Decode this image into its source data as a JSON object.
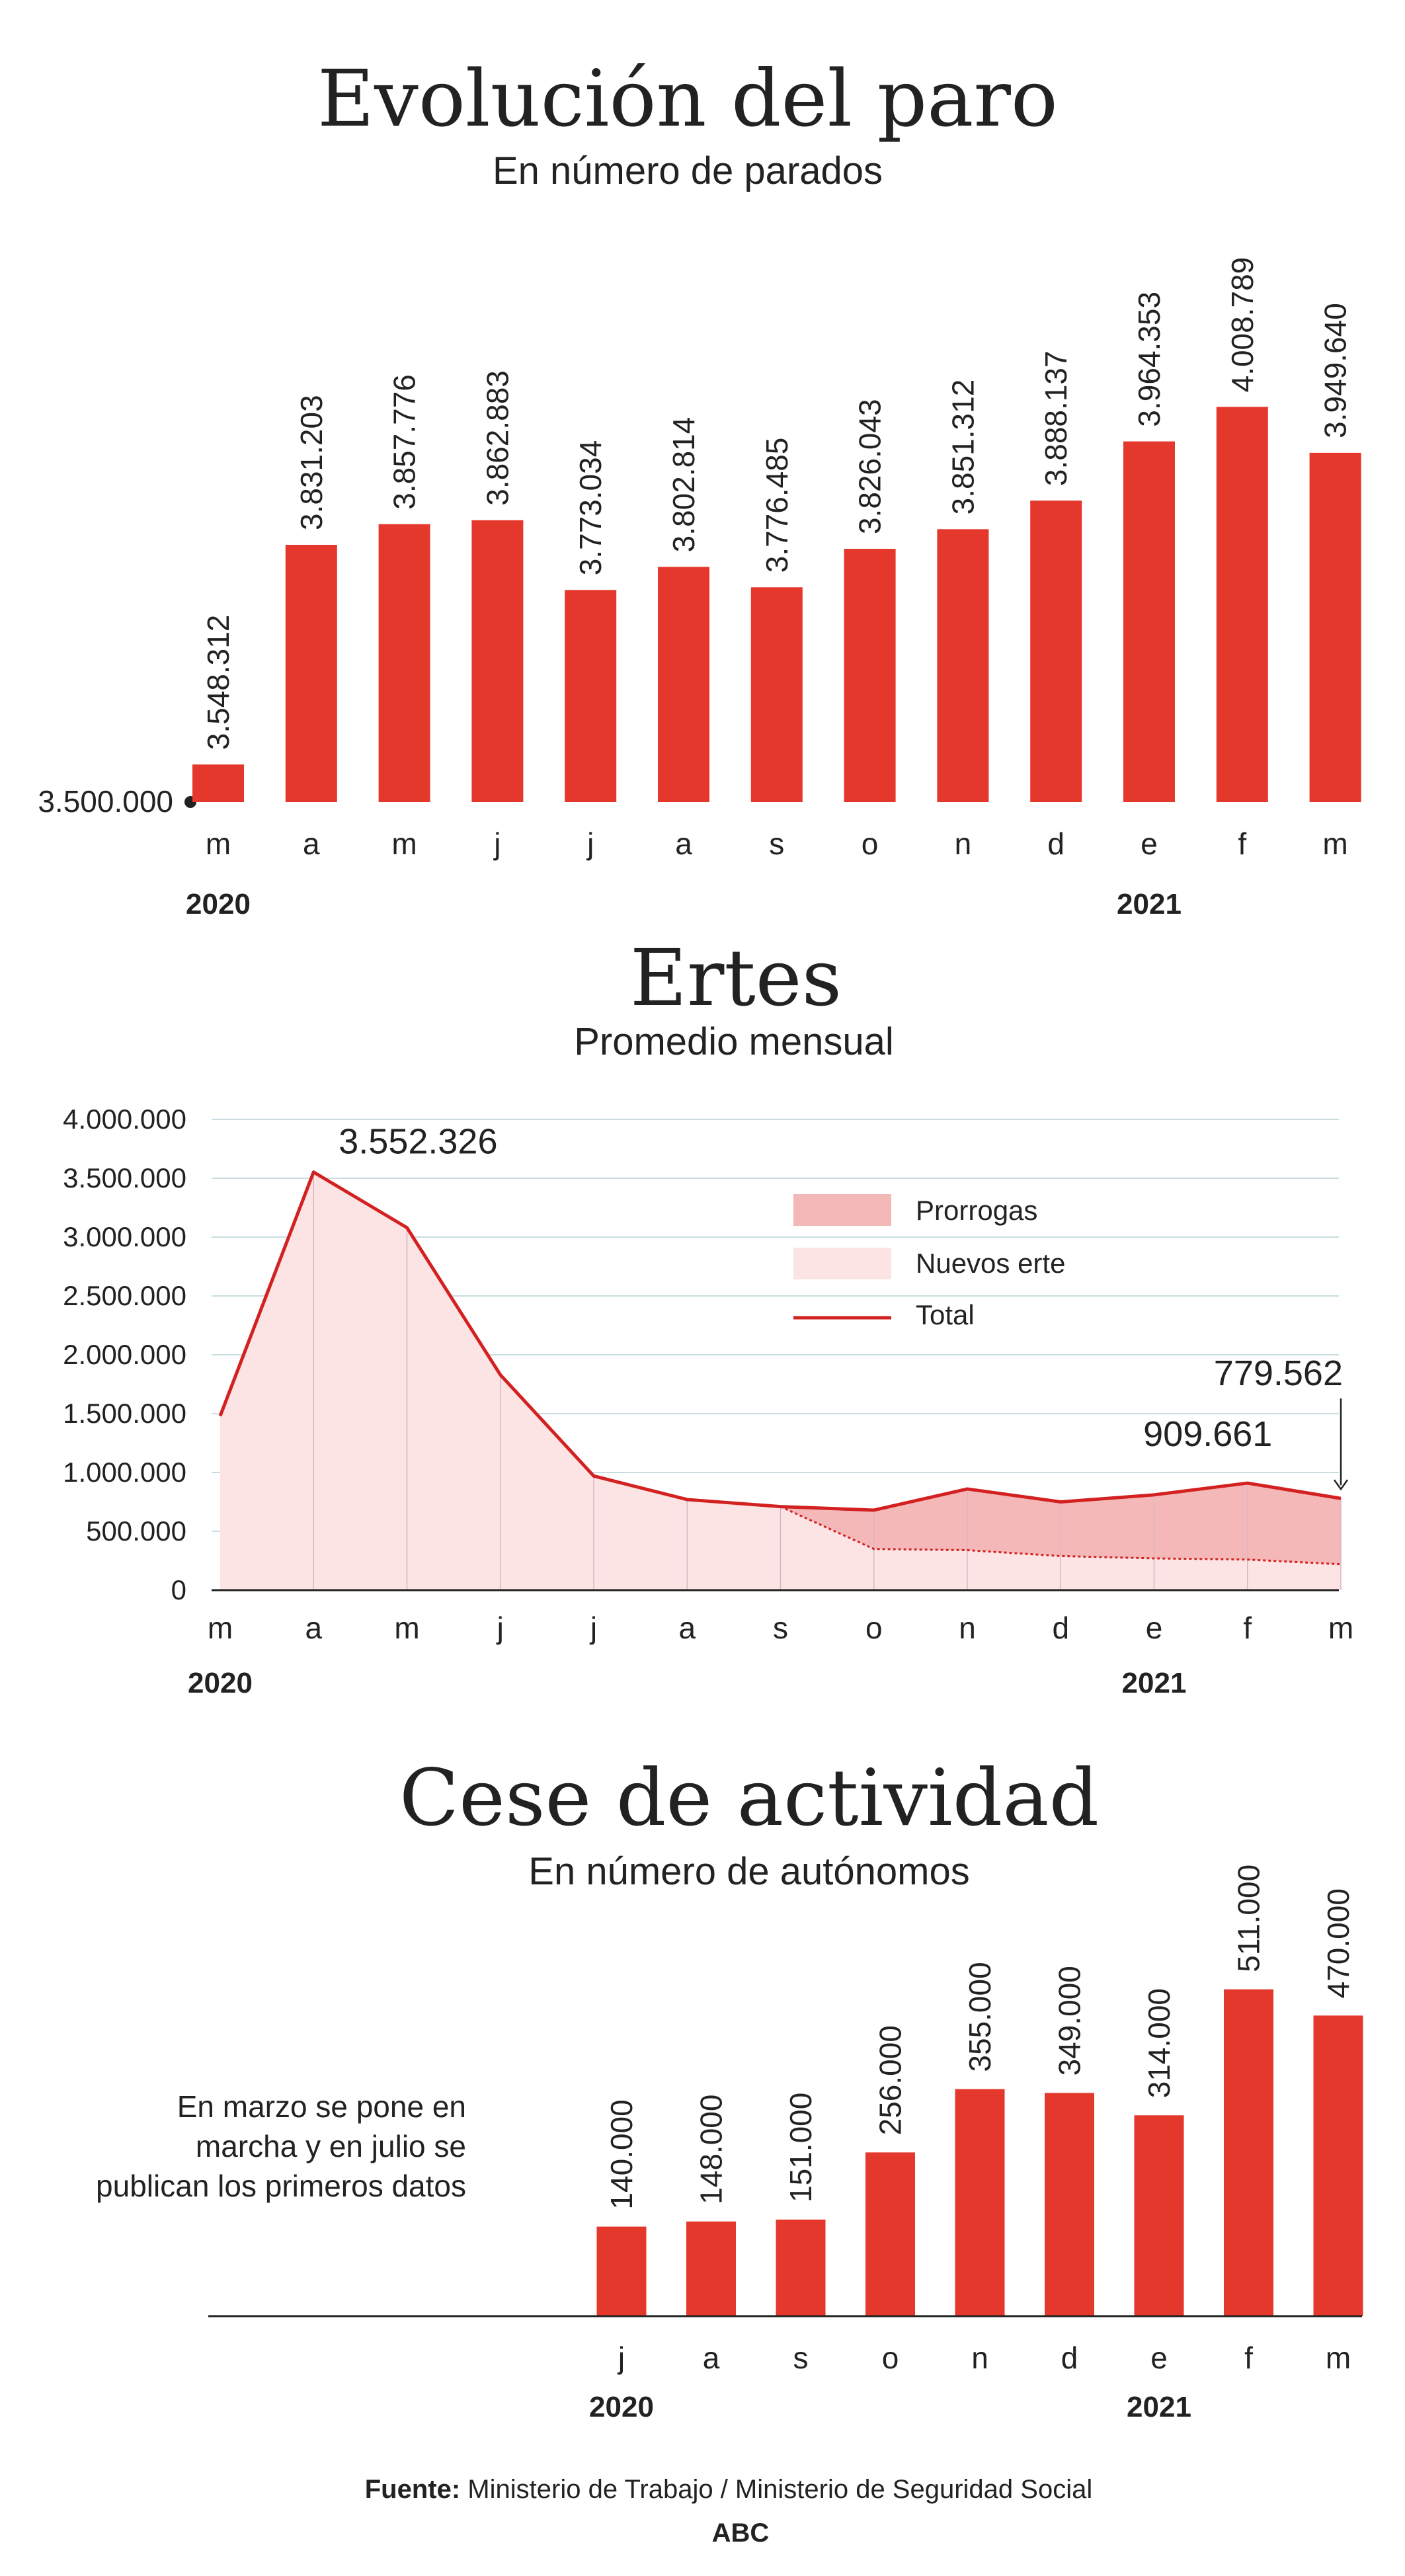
{
  "colors": {
    "bar": "#e5382c",
    "line": "#d32121",
    "prorrogas": "#f5b8b8",
    "nuevos": "#fde4e4",
    "grid": "#c9dde0",
    "text": "#222222"
  },
  "chart_data": [
    {
      "type": "bar",
      "title": "Evolución del paro",
      "subtitle": "En número de parados",
      "categories": [
        "m",
        "a",
        "m",
        "j",
        "j",
        "a",
        "s",
        "o",
        "n",
        "d",
        "e",
        "f",
        "m"
      ],
      "values": [
        3548312,
        3831203,
        3857776,
        3862883,
        3773034,
        3802814,
        3776485,
        3826043,
        3851312,
        3888137,
        3964353,
        4008789,
        3949640
      ],
      "value_labels": [
        "3.548.312",
        "3.831.203",
        "3.857.776",
        "3.862.883",
        "3.773.034",
        "3.802.814",
        "3.776.485",
        "3.826.043",
        "3.851.312",
        "3.888.137",
        "3.964.353",
        "4.008.789",
        "3.949.640"
      ],
      "baseline_value": 3500000,
      "baseline_label": "3.500.000",
      "ylim": [
        3500000,
        4090000
      ],
      "years": [
        {
          "label": "2020",
          "at": 0
        },
        {
          "label": "2021",
          "at": 10
        }
      ]
    },
    {
      "type": "area",
      "title": "Ertes",
      "subtitle": "Promedio mensual",
      "categories": [
        "m",
        "a",
        "m",
        "j",
        "j",
        "a",
        "s",
        "o",
        "n",
        "d",
        "e",
        "f",
        "m"
      ],
      "ylim": [
        0,
        4000000
      ],
      "yticks": [
        0,
        500000,
        1000000,
        1500000,
        2000000,
        2500000,
        3000000,
        3500000,
        4000000
      ],
      "ytick_labels": [
        "0",
        "500.000",
        "1.000.000",
        "1.500.000",
        "2.000.000",
        "2.500.000",
        "3.000.000",
        "3.500.000",
        "4.000.000"
      ],
      "grid": true,
      "series": [
        {
          "name": "Total",
          "values": [
            1480000,
            3552326,
            3080000,
            1830000,
            970000,
            770000,
            710000,
            680000,
            860000,
            750000,
            810000,
            909661,
            779562
          ]
        },
        {
          "name": "Nuevos erte",
          "values": [
            1480000,
            3552326,
            3080000,
            1830000,
            970000,
            770000,
            710000,
            350000,
            340000,
            290000,
            270000,
            260000,
            220000
          ]
        },
        {
          "name": "Prorrogas",
          "values": [
            0,
            0,
            0,
            0,
            0,
            0,
            0,
            330000,
            520000,
            460000,
            540000,
            649661,
            559562
          ]
        }
      ],
      "legend": [
        "Prorrogas",
        "Nuevos erte",
        "Total"
      ],
      "legend_position": "right",
      "annotations": [
        {
          "text": "3.552.326",
          "index": 1
        },
        {
          "text": "909.661",
          "index": 11
        },
        {
          "text": "779.562",
          "index": 12
        }
      ],
      "years": [
        {
          "label": "2020",
          "at": 0
        },
        {
          "label": "2021",
          "at": 10
        }
      ]
    },
    {
      "type": "bar",
      "title": "Cese de actividad",
      "subtitle": "En número de autónomos",
      "categories": [
        "j",
        "a",
        "s",
        "o",
        "n",
        "d",
        "e",
        "f",
        "m"
      ],
      "values": [
        140000,
        148000,
        151000,
        256000,
        355000,
        349000,
        314000,
        511000,
        470000
      ],
      "value_labels": [
        "140.000",
        "148.000",
        "151.000",
        "256.000",
        "355.000",
        "349.000",
        "314.000",
        "511.000",
        "470.000"
      ],
      "ylim": [
        0,
        520000
      ],
      "note": [
        "En marzo se pone en",
        "marcha y en julio se",
        "publican los primeros datos"
      ],
      "years": [
        {
          "label": "2020",
          "at": 0
        },
        {
          "label": "2021",
          "at": 6
        }
      ]
    }
  ],
  "footer": {
    "source_label": "Fuente:",
    "source_text": " Ministerio de Trabajo / Ministerio de Seguridad Social",
    "brand": "ABC"
  }
}
